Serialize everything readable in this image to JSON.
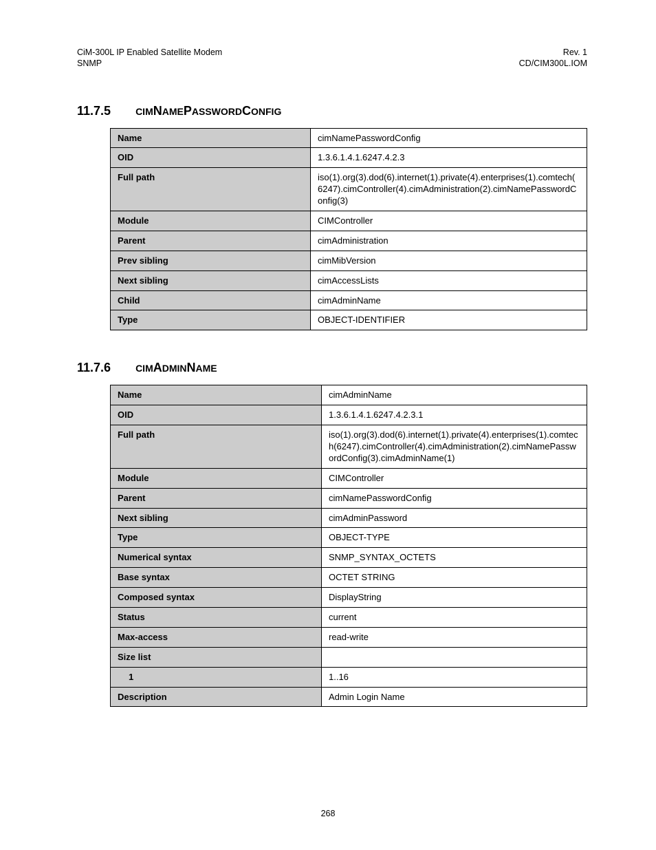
{
  "header": {
    "left1": "CiM-300L IP Enabled Satellite Modem",
    "left2": "SNMP",
    "right1": "Rev. 1",
    "right2": "CD/CIM300L.IOM"
  },
  "section1": {
    "number": "11.7.5",
    "title_html": "<span style=\"font-size:14px\">CIM</span>N<span style=\"font-size:14px\">AME</span>P<span style=\"font-size:14px\">ASSWORD</span>C<span style=\"font-size:14px\">ONFIG</span>",
    "rows": [
      {
        "k": "Name",
        "v": "cimNamePasswordConfig"
      },
      {
        "k": "OID",
        "v": "1.3.6.1.4.1.6247.4.2.3"
      },
      {
        "k": "Full path",
        "v": "iso(1).org(3).dod(6).internet(1).private(4).enterprises(1).comtech(6247).cimController(4).cimAdministration(2).cimNamePasswordConfig(3)"
      },
      {
        "k": "Module",
        "v": "CIMController"
      },
      {
        "k": "Parent",
        "v": "cimAdministration"
      },
      {
        "k": "Prev sibling",
        "v": "cimMibVersion"
      },
      {
        "k": "Next sibling",
        "v": "cimAccessLists"
      },
      {
        "k": "Child",
        "v": "cimAdminName"
      },
      {
        "k": "Type",
        "v": "OBJECT-IDENTIFIER"
      }
    ]
  },
  "section2": {
    "number": "11.7.6",
    "title_html": "<span style=\"font-size:14px\">CIM</span>A<span style=\"font-size:14px\">DMIN</span>N<span style=\"font-size:14px\">AME</span>",
    "rows": [
      {
        "k": "Name",
        "v": "cimAdminName"
      },
      {
        "k": "OID",
        "v": "1.3.6.1.4.1.6247.4.2.3.1"
      },
      {
        "k": "Full path",
        "v": "iso(1).org(3).dod(6).internet(1).private(4).enterprises(1).comtech(6247).cimController(4).cimAdministration(2).cimNamePasswordConfig(3).cimAdminName(1)"
      },
      {
        "k": "Module",
        "v": "CIMController"
      },
      {
        "k": "Parent",
        "v": "cimNamePasswordConfig"
      },
      {
        "k": "Next sibling",
        "v": "cimAdminPassword"
      },
      {
        "k": "Type",
        "v": "OBJECT-TYPE"
      },
      {
        "k": "Numerical syntax",
        "v": "SNMP_SYNTAX_OCTETS"
      },
      {
        "k": "Base syntax",
        "v": "OCTET STRING"
      },
      {
        "k": "Composed syntax",
        "v": "DisplayString"
      },
      {
        "k": "Status",
        "v": "current"
      },
      {
        "k": "Max-access",
        "v": "read-write"
      },
      {
        "k": "Size list",
        "v": ""
      },
      {
        "k": "1",
        "v": "1..16",
        "indent": true
      },
      {
        "k": "Description",
        "v": "Admin Login Name"
      }
    ]
  },
  "page_number": "268"
}
